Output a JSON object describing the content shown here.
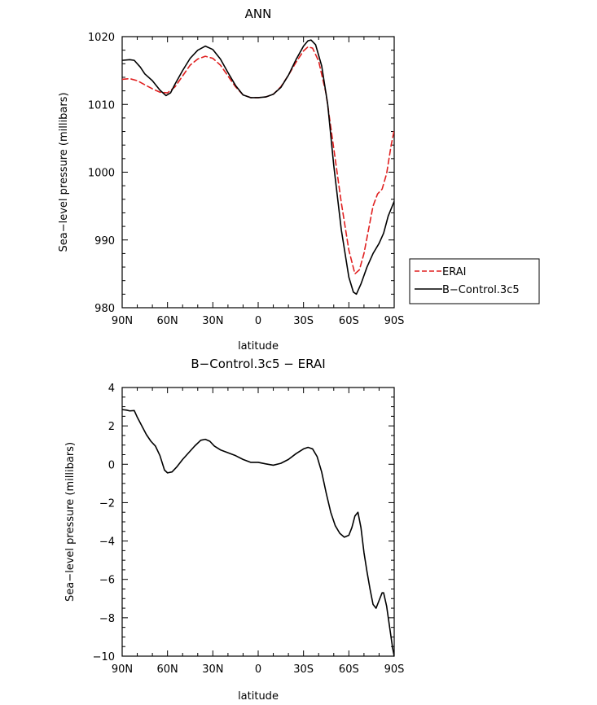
{
  "chart_data": [
    {
      "type": "line",
      "title": "ANN",
      "xlabel": "latitude",
      "ylabel": "Sea−level pressure (millibars)",
      "x_tick_labels": [
        "90N",
        "60N",
        "30N",
        "0",
        "30S",
        "60S",
        "90S"
      ],
      "y_tick_labels": [
        "980",
        "990",
        "1000",
        "1010",
        "1020"
      ],
      "xlim": [
        90,
        -90
      ],
      "ylim": [
        980,
        1020
      ],
      "legend": {
        "position": "right-outside"
      },
      "series": [
        {
          "name": "ERAI",
          "color": "#e02020",
          "dash": "dashed",
          "points": [
            [
              90,
              1013.7
            ],
            [
              85,
              1013.8
            ],
            [
              80,
              1013.5
            ],
            [
              75,
              1012.9
            ],
            [
              70,
              1012.3
            ],
            [
              65,
              1011.8
            ],
            [
              60,
              1011.7
            ],
            [
              55,
              1012.6
            ],
            [
              50,
              1014.2
            ],
            [
              45,
              1015.8
            ],
            [
              40,
              1016.7
            ],
            [
              35,
              1017.1
            ],
            [
              30,
              1016.8
            ],
            [
              25,
              1015.8
            ],
            [
              20,
              1014.2
            ],
            [
              15,
              1012.6
            ],
            [
              10,
              1011.4
            ],
            [
              5,
              1011.0
            ],
            [
              0,
              1011.0
            ],
            [
              -5,
              1011.1
            ],
            [
              -10,
              1011.5
            ],
            [
              -15,
              1012.6
            ],
            [
              -20,
              1014.3
            ],
            [
              -25,
              1016.2
            ],
            [
              -30,
              1017.9
            ],
            [
              -33,
              1018.5
            ],
            [
              -36,
              1018.3
            ],
            [
              -40,
              1016.4
            ],
            [
              -45,
              1011.5
            ],
            [
              -50,
              1003.5
            ],
            [
              -55,
              995.5
            ],
            [
              -60,
              988.5
            ],
            [
              -64,
              985.0
            ],
            [
              -67,
              985.6
            ],
            [
              -70,
              988.0
            ],
            [
              -73,
              991.5
            ],
            [
              -76,
              995.0
            ],
            [
              -79,
              996.8
            ],
            [
              -82,
              997.5
            ],
            [
              -85,
              999.8
            ],
            [
              -88,
              1004.0
            ],
            [
              -90,
              1006.2
            ]
          ]
        },
        {
          "name": "B−Control.3c5",
          "color": "#000000",
          "dash": "solid",
          "points": [
            [
              90,
              1016.5
            ],
            [
              85,
              1016.6
            ],
            [
              82,
              1016.5
            ],
            [
              78,
              1015.5
            ],
            [
              75,
              1014.5
            ],
            [
              70,
              1013.5
            ],
            [
              65,
              1012.1
            ],
            [
              61,
              1011.3
            ],
            [
              58,
              1011.7
            ],
            [
              55,
              1013.0
            ],
            [
              50,
              1015.0
            ],
            [
              45,
              1016.8
            ],
            [
              40,
              1018.0
            ],
            [
              35,
              1018.6
            ],
            [
              30,
              1018.1
            ],
            [
              25,
              1016.7
            ],
            [
              20,
              1014.7
            ],
            [
              15,
              1012.8
            ],
            [
              10,
              1011.4
            ],
            [
              5,
              1011.0
            ],
            [
              0,
              1011.0
            ],
            [
              -5,
              1011.1
            ],
            [
              -10,
              1011.5
            ],
            [
              -15,
              1012.5
            ],
            [
              -20,
              1014.3
            ],
            [
              -25,
              1016.6
            ],
            [
              -30,
              1018.6
            ],
            [
              -33,
              1019.4
            ],
            [
              -35,
              1019.5
            ],
            [
              -38,
              1018.8
            ],
            [
              -42,
              1015.7
            ],
            [
              -46,
              1010.0
            ],
            [
              -50,
              1001.0
            ],
            [
              -55,
              991.5
            ],
            [
              -60,
              984.5
            ],
            [
              -63,
              982.3
            ],
            [
              -65,
              982.0
            ],
            [
              -68,
              983.5
            ],
            [
              -72,
              986.0
            ],
            [
              -76,
              988.0
            ],
            [
              -80,
              989.5
            ],
            [
              -83,
              991.0
            ],
            [
              -86,
              993.5
            ],
            [
              -90,
              995.7
            ]
          ]
        }
      ]
    },
    {
      "type": "line",
      "title": "B−Control.3c5 − ERAI",
      "xlabel": "latitude",
      "ylabel": "Sea−level pressure (millibars)",
      "x_tick_labels": [
        "90N",
        "60N",
        "30N",
        "0",
        "30S",
        "60S",
        "90S"
      ],
      "y_tick_labels": [
        "−10",
        "−8",
        "−6",
        "−4",
        "−2",
        "0",
        "2",
        "4"
      ],
      "xlim": [
        90,
        -90
      ],
      "ylim": [
        -10,
        4
      ],
      "series": [
        {
          "color": "#000000",
          "dash": "solid",
          "points": [
            [
              90,
              2.85
            ],
            [
              87,
              2.82
            ],
            [
              85,
              2.78
            ],
            [
              82,
              2.8
            ],
            [
              80,
              2.45
            ],
            [
              77,
              2.0
            ],
            [
              74,
              1.55
            ],
            [
              71,
              1.2
            ],
            [
              68,
              0.95
            ],
            [
              65,
              0.45
            ],
            [
              62,
              -0.3
            ],
            [
              60,
              -0.45
            ],
            [
              57,
              -0.4
            ],
            [
              54,
              -0.15
            ],
            [
              50,
              0.25
            ],
            [
              46,
              0.6
            ],
            [
              42,
              0.95
            ],
            [
              38,
              1.25
            ],
            [
              35,
              1.3
            ],
            [
              32,
              1.2
            ],
            [
              29,
              0.95
            ],
            [
              25,
              0.75
            ],
            [
              20,
              0.6
            ],
            [
              15,
              0.45
            ],
            [
              10,
              0.25
            ],
            [
              5,
              0.1
            ],
            [
              0,
              0.1
            ],
            [
              -5,
              0.02
            ],
            [
              -10,
              -0.05
            ],
            [
              -15,
              0.05
            ],
            [
              -20,
              0.25
            ],
            [
              -25,
              0.55
            ],
            [
              -30,
              0.8
            ],
            [
              -33,
              0.88
            ],
            [
              -36,
              0.8
            ],
            [
              -39,
              0.4
            ],
            [
              -42,
              -0.4
            ],
            [
              -45,
              -1.5
            ],
            [
              -48,
              -2.5
            ],
            [
              -51,
              -3.2
            ],
            [
              -54,
              -3.6
            ],
            [
              -57,
              -3.8
            ],
            [
              -60,
              -3.7
            ],
            [
              -62,
              -3.3
            ],
            [
              -64,
              -2.7
            ],
            [
              -66,
              -2.5
            ],
            [
              -68,
              -3.3
            ],
            [
              -70,
              -4.6
            ],
            [
              -72,
              -5.6
            ],
            [
              -74,
              -6.5
            ],
            [
              -76,
              -7.3
            ],
            [
              -78,
              -7.5
            ],
            [
              -80,
              -7.1
            ],
            [
              -82,
              -6.7
            ],
            [
              -83,
              -6.7
            ],
            [
              -85,
              -7.4
            ],
            [
              -87,
              -8.5
            ],
            [
              -89,
              -9.6
            ],
            [
              -90,
              -10.0
            ]
          ]
        }
      ]
    }
  ]
}
